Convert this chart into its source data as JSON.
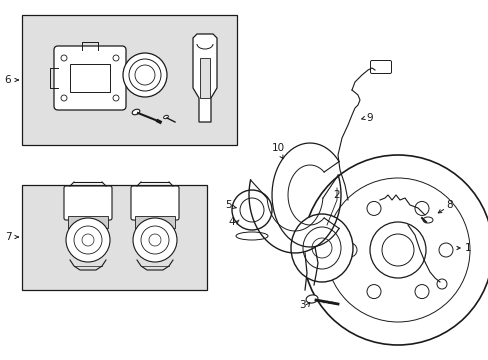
{
  "bg_color": "#ffffff",
  "line_color": "#1a1a1a",
  "gray_fill": "#e0e0e0",
  "fig_width": 4.89,
  "fig_height": 3.6,
  "dpi": 100
}
